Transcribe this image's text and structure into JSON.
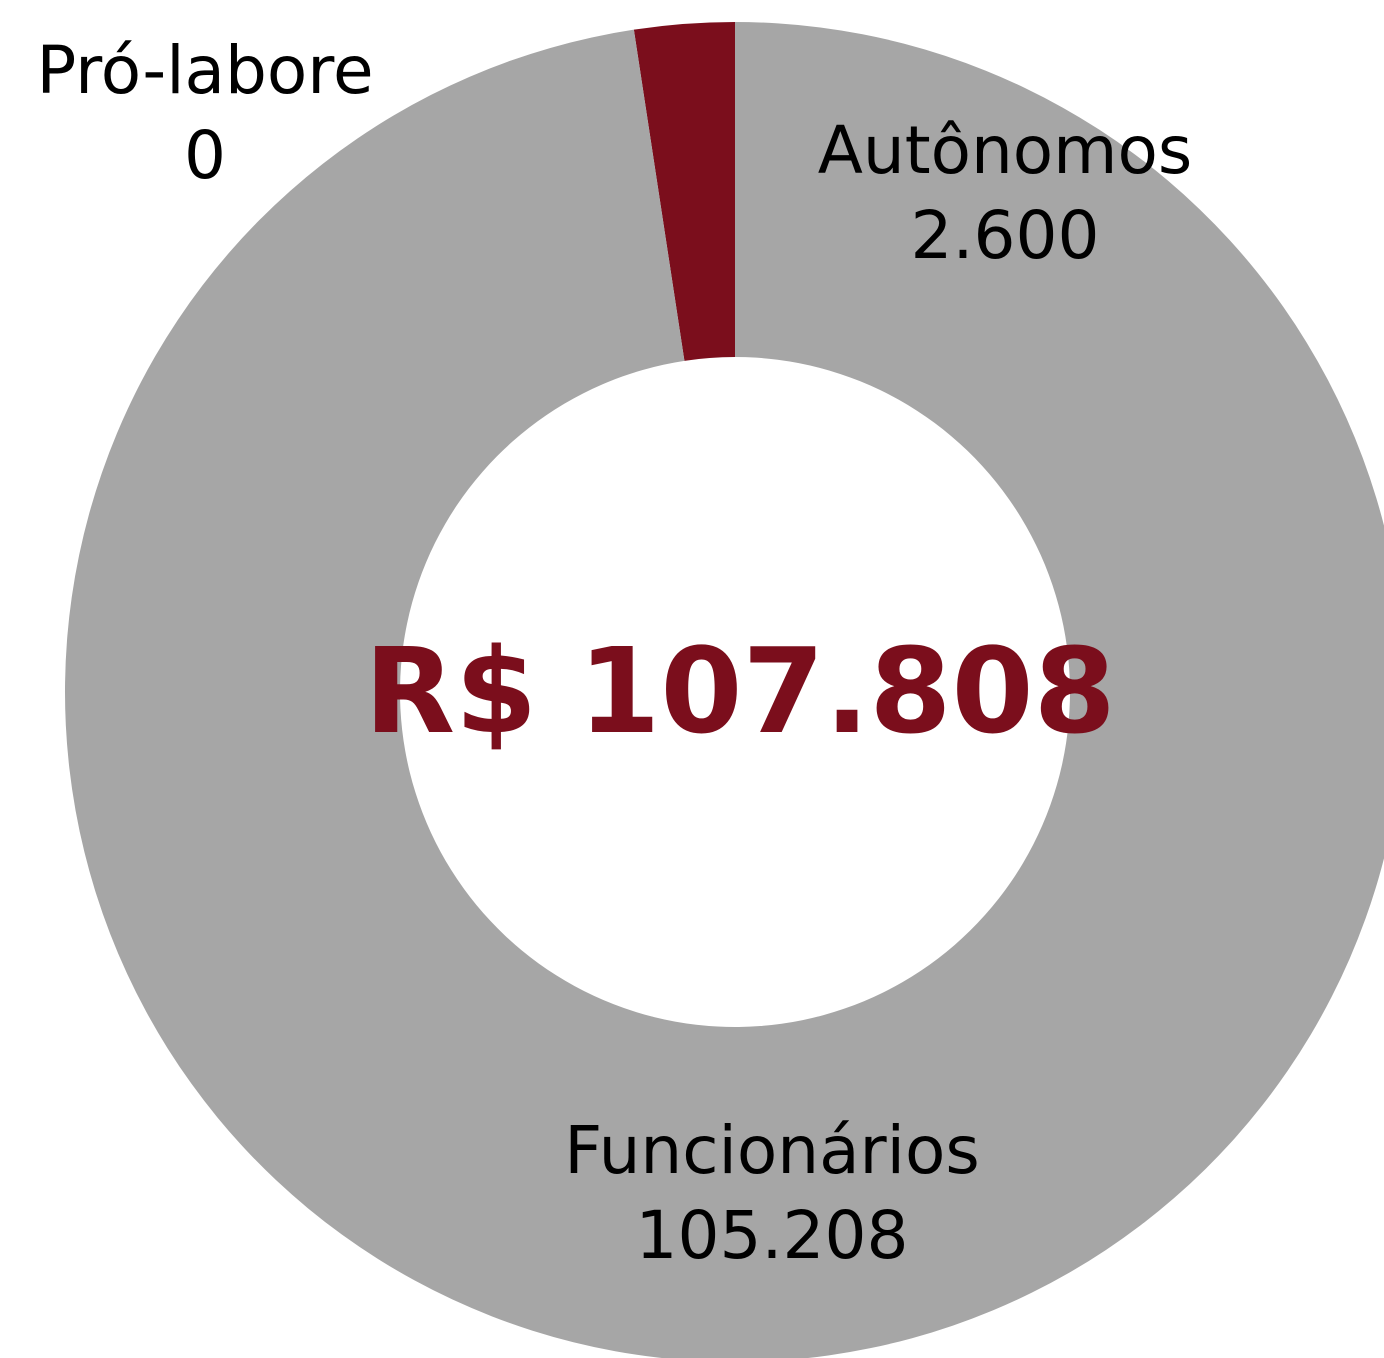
{
  "chart_data": {
    "type": "donut",
    "categories": [
      "Pró-labore",
      "Autônomos",
      "Funcionários"
    ],
    "values": [
      0,
      2600,
      105208
    ],
    "value_labels": [
      "0",
      "2.600",
      "105.208"
    ],
    "colors": [
      "#7b0e1c",
      "#7b0e1c",
      "#a6a6a6"
    ],
    "center_label": "R$ 107.808"
  }
}
